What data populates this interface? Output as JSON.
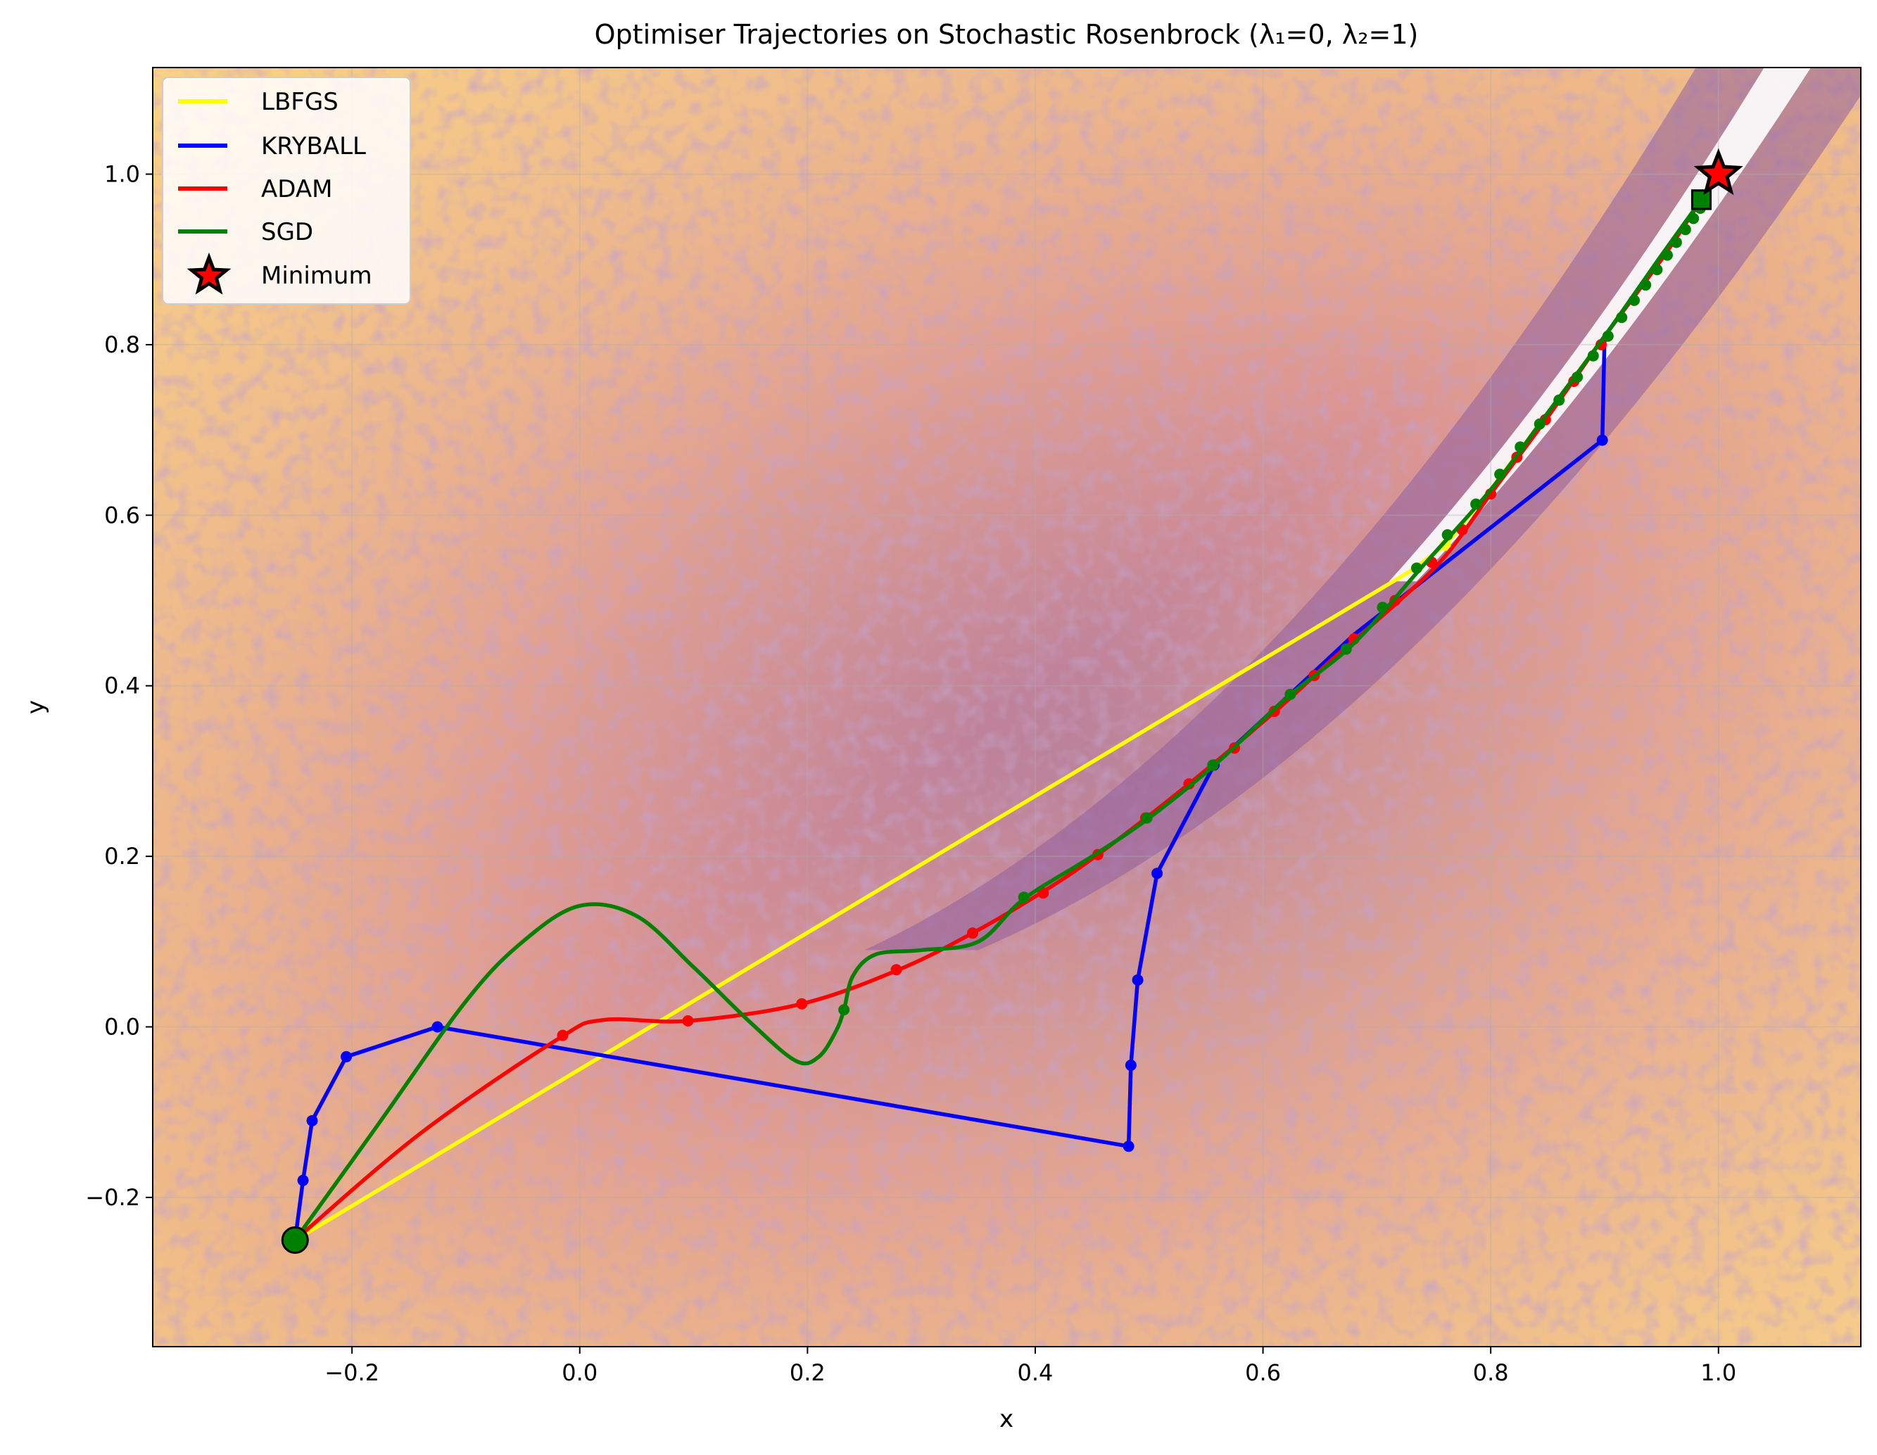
{
  "chart_data": {
    "type": "line",
    "title": "Optimiser Trajectories on Stochastic Rosenbrock (λ₁=0, λ₂=1)",
    "xlabel": "x",
    "ylabel": "y",
    "xlim": [
      -0.375,
      1.125
    ],
    "ylim": [
      -0.375,
      1.125
    ],
    "x_ticks": [
      -0.2,
      0.0,
      0.2,
      0.4,
      0.6,
      0.8,
      1.0
    ],
    "x_tick_labels": [
      "−0.2",
      "0.0",
      "0.2",
      "0.4",
      "0.6",
      "0.8",
      "1.0"
    ],
    "y_ticks": [
      -0.2,
      0.0,
      0.2,
      0.4,
      0.6,
      0.8,
      1.0
    ],
    "y_tick_labels": [
      "−0.2",
      "0.0",
      "0.2",
      "0.4",
      "0.6",
      "0.8",
      "1.0"
    ],
    "grid": true,
    "legend_position": "top-left",
    "background": "filled contour of stochastic Rosenbrock function (purple valley to yellow high values)",
    "colors": {
      "contour_low": "#8e5e9e",
      "contour_mid": "#d88c95",
      "contour_high": "#fbd88a",
      "LBFGS": "#ffff00",
      "KRYBALL": "#0000ff",
      "ADAM": "#ff0000",
      "SGD": "#008000",
      "minimum_fill": "#ff0000",
      "minimum_edge": "#000000"
    },
    "start": [
      -0.25,
      -0.25
    ],
    "minimum": [
      1.0,
      1.0
    ],
    "series": [
      {
        "name": "LBFGS",
        "points": [
          [
            -0.25,
            -0.25
          ],
          [
            0.73,
            0.535
          ],
          [
            0.76,
            0.565
          ],
          [
            0.8,
            0.63
          ],
          [
            0.85,
            0.72
          ],
          [
            0.9,
            0.81
          ],
          [
            0.95,
            0.9
          ],
          [
            0.985,
            0.97
          ]
        ],
        "markers": [
          [
            0.76,
            0.565
          ],
          [
            0.985,
            0.97
          ]
        ]
      },
      {
        "name": "KRYBALL",
        "points": [
          [
            -0.25,
            -0.25
          ],
          [
            -0.243,
            -0.18
          ],
          [
            -0.235,
            -0.11
          ],
          [
            -0.205,
            -0.035
          ],
          [
            -0.125,
            0.0
          ],
          [
            0.482,
            -0.14
          ],
          [
            0.484,
            -0.045
          ],
          [
            0.49,
            0.055
          ],
          [
            0.507,
            0.18
          ],
          [
            0.557,
            0.307
          ],
          [
            0.68,
            0.46
          ],
          [
            0.898,
            0.688
          ],
          [
            0.9,
            0.81
          ],
          [
            0.95,
            0.9
          ],
          [
            0.985,
            0.97
          ]
        ],
        "markers": [
          [
            -0.243,
            -0.18
          ],
          [
            -0.235,
            -0.11
          ],
          [
            -0.205,
            -0.035
          ],
          [
            -0.125,
            0.0
          ],
          [
            0.482,
            -0.14
          ],
          [
            0.484,
            -0.045
          ],
          [
            0.49,
            0.055
          ],
          [
            0.507,
            0.18
          ],
          [
            0.557,
            0.307
          ],
          [
            0.898,
            0.688
          ]
        ]
      },
      {
        "name": "ADAM",
        "points": [
          [
            -0.25,
            -0.25
          ],
          [
            -0.14,
            -0.125
          ],
          [
            -0.02,
            -0.015
          ],
          [
            0.02,
            0.008
          ],
          [
            0.095,
            0.007
          ],
          [
            0.195,
            0.027
          ],
          [
            0.28,
            0.067
          ],
          [
            0.345,
            0.11
          ],
          [
            0.405,
            0.157
          ],
          [
            0.455,
            0.202
          ],
          [
            0.535,
            0.285
          ],
          [
            0.615,
            0.375
          ],
          [
            0.66,
            0.43
          ],
          [
            0.72,
            0.5
          ],
          [
            0.76,
            0.552
          ],
          [
            0.8,
            0.625
          ],
          [
            0.85,
            0.715
          ],
          [
            0.9,
            0.81
          ],
          [
            0.95,
            0.9
          ],
          [
            0.985,
            0.97
          ]
        ],
        "markers": [
          [
            -0.015,
            -0.01
          ],
          [
            0.095,
            0.007
          ],
          [
            0.195,
            0.027
          ],
          [
            0.278,
            0.067
          ],
          [
            0.345,
            0.11
          ],
          [
            0.407,
            0.157
          ],
          [
            0.455,
            0.202
          ],
          [
            0.497,
            0.245
          ],
          [
            0.535,
            0.285
          ],
          [
            0.575,
            0.327
          ],
          [
            0.61,
            0.37
          ],
          [
            0.645,
            0.412
          ],
          [
            0.68,
            0.455
          ],
          [
            0.716,
            0.5
          ],
          [
            0.748,
            0.545
          ],
          [
            0.775,
            0.583
          ],
          [
            0.8,
            0.625
          ],
          [
            0.823,
            0.668
          ],
          [
            0.848,
            0.712
          ],
          [
            0.873,
            0.757
          ],
          [
            0.897,
            0.8
          ]
        ]
      },
      {
        "name": "SGD",
        "points": [
          [
            -0.25,
            -0.25
          ],
          [
            -0.18,
            -0.12
          ],
          [
            -0.1,
            0.03
          ],
          [
            -0.05,
            0.1
          ],
          [
            0.0,
            0.142
          ],
          [
            0.05,
            0.13
          ],
          [
            0.1,
            0.07
          ],
          [
            0.15,
            0.005
          ],
          [
            0.19,
            -0.04
          ],
          [
            0.21,
            -0.035
          ],
          [
            0.225,
            -0.005
          ],
          [
            0.232,
            0.02
          ],
          [
            0.24,
            0.06
          ],
          [
            0.26,
            0.085
          ],
          [
            0.3,
            0.09
          ],
          [
            0.35,
            0.1
          ],
          [
            0.39,
            0.15
          ],
          [
            0.45,
            0.2
          ],
          [
            0.5,
            0.245
          ],
          [
            0.56,
            0.31
          ],
          [
            0.62,
            0.385
          ],
          [
            0.68,
            0.45
          ],
          [
            0.74,
            0.54
          ],
          [
            0.8,
            0.63
          ],
          [
            0.85,
            0.72
          ],
          [
            0.9,
            0.81
          ],
          [
            0.95,
            0.905
          ],
          [
            0.985,
            0.97
          ]
        ],
        "markers": [
          [
            0.232,
            0.02
          ],
          [
            0.39,
            0.152
          ],
          [
            0.498,
            0.245
          ],
          [
            0.556,
            0.307
          ],
          [
            0.624,
            0.39
          ],
          [
            0.673,
            0.443
          ],
          [
            0.705,
            0.492
          ],
          [
            0.735,
            0.538
          ],
          [
            0.762,
            0.577
          ],
          [
            0.787,
            0.613
          ],
          [
            0.808,
            0.648
          ],
          [
            0.826,
            0.68
          ],
          [
            0.843,
            0.707
          ],
          [
            0.86,
            0.735
          ],
          [
            0.876,
            0.762
          ],
          [
            0.89,
            0.787
          ],
          [
            0.903,
            0.81
          ],
          [
            0.915,
            0.832
          ],
          [
            0.926,
            0.852
          ],
          [
            0.936,
            0.87
          ],
          [
            0.946,
            0.888
          ],
          [
            0.955,
            0.905
          ],
          [
            0.963,
            0.92
          ],
          [
            0.971,
            0.935
          ],
          [
            0.978,
            0.948
          ],
          [
            0.984,
            0.96
          ]
        ]
      },
      {
        "name": "Minimum",
        "points": [
          [
            1.0,
            1.0
          ]
        ],
        "marker": "star"
      }
    ],
    "legend": [
      "LBFGS",
      "KRYBALL",
      "ADAM",
      "SGD",
      "Minimum"
    ]
  }
}
